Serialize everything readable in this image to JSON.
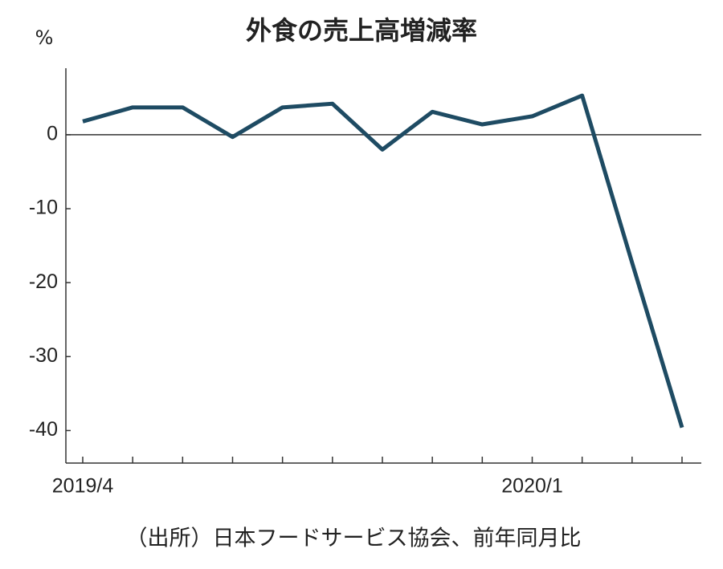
{
  "chart_data": {
    "type": "line",
    "title": "外食の売上高増減率",
    "y_label": "%",
    "source": "（出所）日本フードサービス協会、前年同月比",
    "categories": [
      "2019/4",
      null,
      null,
      null,
      null,
      null,
      null,
      null,
      null,
      "2020/1",
      null,
      null,
      null
    ],
    "series": [
      {
        "name": "売上高増減率",
        "color": "#1e4b63",
        "values": [
          1.8,
          3.7,
          3.7,
          -0.3,
          3.7,
          4.2,
          -2.0,
          3.1,
          1.4,
          2.5,
          5.3,
          -17.3,
          -39.6
        ]
      }
    ],
    "ylim": [
      -44.4,
      9
    ],
    "yticks": [
      0,
      -10,
      -20,
      -30,
      -40
    ],
    "zero_line": true
  }
}
